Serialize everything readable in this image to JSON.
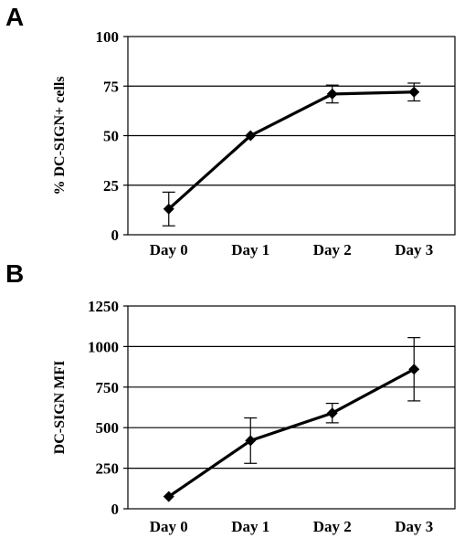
{
  "chart_data": [
    {
      "panel": "A",
      "type": "line",
      "title": "",
      "xlabel": "",
      "ylabel": "% DC-SIGN+ cells",
      "categories": [
        "Day 0",
        "Day 1",
        "Day 2",
        "Day 3"
      ],
      "ylim": [
        0,
        100
      ],
      "yticks": [
        0,
        25,
        50,
        75,
        100
      ],
      "grid": true,
      "marker": "diamond",
      "series": [
        {
          "values": [
            13,
            50,
            71,
            72
          ],
          "error": [
            8.5,
            0,
            4.5,
            4.5
          ]
        }
      ]
    },
    {
      "panel": "B",
      "type": "line",
      "title": "",
      "xlabel": "",
      "ylabel": "DC-SIGN MFI",
      "categories": [
        "Day 0",
        "Day 1",
        "Day 2",
        "Day 3"
      ],
      "ylim": [
        0,
        1250
      ],
      "yticks": [
        0,
        250,
        500,
        750,
        1000,
        1250
      ],
      "grid": true,
      "marker": "diamond",
      "series": [
        {
          "values": [
            75,
            420,
            590,
            860
          ],
          "error": [
            0,
            140,
            60,
            195
          ]
        }
      ]
    }
  ]
}
